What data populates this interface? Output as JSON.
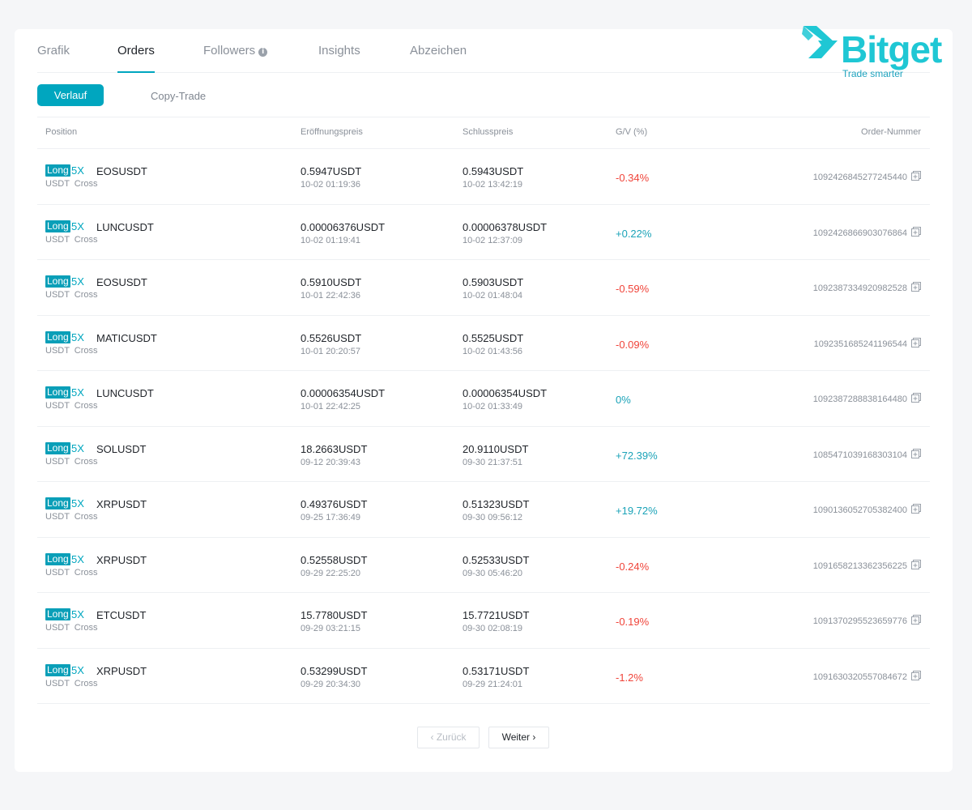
{
  "tabs": [
    {
      "label": "Grafik"
    },
    {
      "label": "Orders"
    },
    {
      "label": "Followers"
    },
    {
      "label": "Insights"
    },
    {
      "label": "Abzeichen"
    }
  ],
  "active_tab": "Orders",
  "logo": {
    "word": "Bitget",
    "tagline": "Trade smarter",
    "color": "#1fc7d4"
  },
  "subtabs": {
    "active": "Verlauf",
    "other": "Copy-Trade"
  },
  "table": {
    "headers": {
      "position": "Position",
      "open_price": "Eröffnungspreis",
      "close_price": "Schlusspreis",
      "pnl": "G/V (%)",
      "order_no": "Order-Nummer"
    },
    "rows": [
      {
        "side": "Long",
        "leverage": "5X",
        "symbol": "EOSUSDT",
        "margin": "USDT  Cross",
        "open_price": "0.5947USDT",
        "open_time": "10-02 01:19:36",
        "close_price": "0.5943USDT",
        "close_time": "10-02 13:42:19",
        "pnl": "-0.34%",
        "pnl_dir": "neg",
        "order_no": "1092426845277245440"
      },
      {
        "side": "Long",
        "leverage": "5X",
        "symbol": "LUNCUSDT",
        "margin": "USDT  Cross",
        "open_price": "0.00006376USDT",
        "open_time": "10-02 01:19:41",
        "close_price": "0.00006378USDT",
        "close_time": "10-02 12:37:09",
        "pnl": "+0.22%",
        "pnl_dir": "pos",
        "order_no": "1092426866903076864"
      },
      {
        "side": "Long",
        "leverage": "5X",
        "symbol": "EOSUSDT",
        "margin": "USDT  Cross",
        "open_price": "0.5910USDT",
        "open_time": "10-01 22:42:36",
        "close_price": "0.5903USDT",
        "close_time": "10-02 01:48:04",
        "pnl": "-0.59%",
        "pnl_dir": "neg",
        "order_no": "1092387334920982528"
      },
      {
        "side": "Long",
        "leverage": "5X",
        "symbol": "MATICUSDT",
        "margin": "USDT  Cross",
        "open_price": "0.5526USDT",
        "open_time": "10-01 20:20:57",
        "close_price": "0.5525USDT",
        "close_time": "10-02 01:43:56",
        "pnl": "-0.09%",
        "pnl_dir": "neg",
        "order_no": "1092351685241196544"
      },
      {
        "side": "Long",
        "leverage": "5X",
        "symbol": "LUNCUSDT",
        "margin": "USDT  Cross",
        "open_price": "0.00006354USDT",
        "open_time": "10-01 22:42:25",
        "close_price": "0.00006354USDT",
        "close_time": "10-02 01:33:49",
        "pnl": "0%",
        "pnl_dir": "pos",
        "order_no": "1092387288838164480"
      },
      {
        "side": "Long",
        "leverage": "5X",
        "symbol": "SOLUSDT",
        "margin": "USDT  Cross",
        "open_price": "18.2663USDT",
        "open_time": "09-12 20:39:43",
        "close_price": "20.9110USDT",
        "close_time": "09-30 21:37:51",
        "pnl": "+72.39%",
        "pnl_dir": "pos",
        "order_no": "1085471039168303104"
      },
      {
        "side": "Long",
        "leverage": "5X",
        "symbol": "XRPUSDT",
        "margin": "USDT  Cross",
        "open_price": "0.49376USDT",
        "open_time": "09-25 17:36:49",
        "close_price": "0.51323USDT",
        "close_time": "09-30 09:56:12",
        "pnl": "+19.72%",
        "pnl_dir": "pos",
        "order_no": "1090136052705382400"
      },
      {
        "side": "Long",
        "leverage": "5X",
        "symbol": "XRPUSDT",
        "margin": "USDT  Cross",
        "open_price": "0.52558USDT",
        "open_time": "09-29 22:25:20",
        "close_price": "0.52533USDT",
        "close_time": "09-30 05:46:20",
        "pnl": "-0.24%",
        "pnl_dir": "neg",
        "order_no": "1091658213362356225"
      },
      {
        "side": "Long",
        "leverage": "5X",
        "symbol": "ETCUSDT",
        "margin": "USDT  Cross",
        "open_price": "15.7780USDT",
        "open_time": "09-29 03:21:15",
        "close_price": "15.7721USDT",
        "close_time": "09-30 02:08:19",
        "pnl": "-0.19%",
        "pnl_dir": "neg",
        "order_no": "1091370295523659776"
      },
      {
        "side": "Long",
        "leverage": "5X",
        "symbol": "XRPUSDT",
        "margin": "USDT  Cross",
        "open_price": "0.53299USDT",
        "open_time": "09-29 20:34:30",
        "close_price": "0.53171USDT",
        "close_time": "09-29 21:24:01",
        "pnl": "-1.2%",
        "pnl_dir": "neg",
        "order_no": "1091630320557084672"
      }
    ]
  },
  "pagination": {
    "prev_label": "Zurück",
    "next_label": "Weiter"
  },
  "colors": {
    "accent": "#00a6bf",
    "negative": "#f0443a",
    "positive": "#1ba3b8"
  }
}
